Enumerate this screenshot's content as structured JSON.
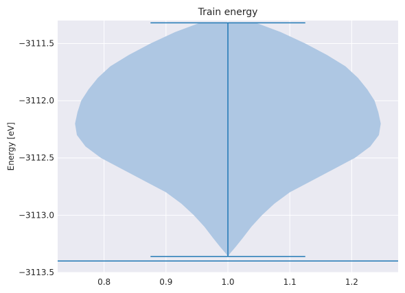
{
  "chart_data": {
    "type": "violin",
    "title": "Train energy",
    "xlabel": "",
    "ylabel": "Energy [eV]",
    "xlim": [
      0.725,
      1.275
    ],
    "ylim": [
      -3113.5,
      -3111.3
    ],
    "grid": true,
    "xticks": [
      0.8,
      0.9,
      1.0,
      1.1,
      1.2
    ],
    "xtick_labels": [
      "0.8",
      "0.9",
      "1.0",
      "1.1",
      "1.2"
    ],
    "yticks": [
      -3113.5,
      -3113.0,
      -3112.5,
      -3112.0,
      -3111.5
    ],
    "ytick_labels": [
      "−3113.5",
      "−3113.0",
      "−3112.5",
      "−3112.0",
      "−3111.5"
    ],
    "violin": {
      "position": 1.0,
      "min": -3113.36,
      "max": -3111.32,
      "fill_color": "#aec7e3",
      "line_color": "#1f77b4",
      "cap_halfwidth": 0.125,
      "profile": [
        [
          -3111.32,
          0.045
        ],
        [
          -3111.4,
          0.085
        ],
        [
          -3111.5,
          0.125
        ],
        [
          -3111.6,
          0.16
        ],
        [
          -3111.7,
          0.19
        ],
        [
          -3111.8,
          0.21
        ],
        [
          -3111.9,
          0.225
        ],
        [
          -3112.0,
          0.237
        ],
        [
          -3112.1,
          0.243
        ],
        [
          -3112.2,
          0.247
        ],
        [
          -3112.3,
          0.244
        ],
        [
          -3112.4,
          0.23
        ],
        [
          -3112.5,
          0.205
        ],
        [
          -3112.6,
          0.17
        ],
        [
          -3112.7,
          0.135
        ],
        [
          -3112.8,
          0.1
        ],
        [
          -3112.9,
          0.075
        ],
        [
          -3113.0,
          0.055
        ],
        [
          -3113.1,
          0.038
        ],
        [
          -3113.2,
          0.024
        ],
        [
          -3113.28,
          0.012
        ],
        [
          -3113.33,
          0.004
        ],
        [
          -3113.36,
          0.0
        ]
      ]
    },
    "hline": {
      "y": -3113.4,
      "color": "#1f77b4"
    }
  }
}
